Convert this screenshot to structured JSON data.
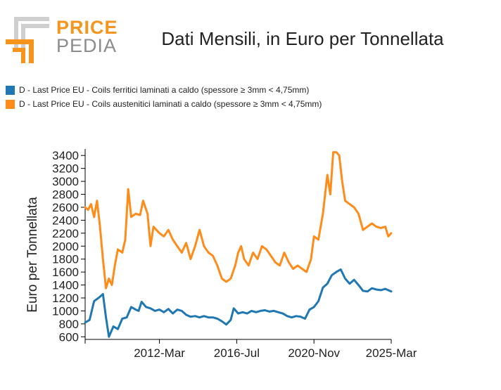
{
  "logo": {
    "top_text": "PRICE",
    "bottom_text": "PEDIA"
  },
  "colors": {
    "series1": "#1f77b4",
    "series2": "#ff8c1a",
    "logo_orange": "#f7941d",
    "logo_gray": "#8c8c8c"
  },
  "chart_data": {
    "type": "line",
    "title": "Dati Mensili, in Euro per Tonnellata",
    "ylabel": "Euro per Tonnellata",
    "xlabel": "",
    "ylim": [
      560,
      3500
    ],
    "yticks": [
      600,
      800,
      1000,
      1200,
      1400,
      1600,
      1800,
      2000,
      2200,
      2400,
      2600,
      2800,
      3000,
      3200,
      3400
    ],
    "xlim": [
      "2008-01",
      "2025-03"
    ],
    "xticks": [
      {
        "label": "2012-Mar",
        "date": "2012-03"
      },
      {
        "label": "2016-Jul",
        "date": "2016-07"
      },
      {
        "label": "2020-Nov",
        "date": "2020-11"
      },
      {
        "label": "2025-Mar",
        "date": "2025-03"
      }
    ],
    "grid": false,
    "legend_position": "top-left",
    "series": [
      {
        "name": "D - Last Price EU - Coils ferritici laminati a caldo (spessore ≥ 3mm < 4,75mm)",
        "color": "#1f77b4",
        "points": [
          [
            "2008-01",
            820
          ],
          [
            "2008-04",
            860
          ],
          [
            "2008-07",
            1150
          ],
          [
            "2008-10",
            1200
          ],
          [
            "2009-01",
            1260
          ],
          [
            "2009-03",
            900
          ],
          [
            "2009-05",
            600
          ],
          [
            "2009-08",
            760
          ],
          [
            "2009-11",
            720
          ],
          [
            "2010-02",
            880
          ],
          [
            "2010-05",
            900
          ],
          [
            "2010-08",
            1060
          ],
          [
            "2010-11",
            1020
          ],
          [
            "2011-01",
            1000
          ],
          [
            "2011-03",
            1140
          ],
          [
            "2011-06",
            1060
          ],
          [
            "2011-09",
            1040
          ],
          [
            "2011-12",
            1000
          ],
          [
            "2012-03",
            1020
          ],
          [
            "2012-06",
            980
          ],
          [
            "2012-09",
            1030
          ],
          [
            "2012-12",
            960
          ],
          [
            "2013-03",
            1020
          ],
          [
            "2013-06",
            1000
          ],
          [
            "2013-09",
            940
          ],
          [
            "2013-12",
            910
          ],
          [
            "2014-03",
            920
          ],
          [
            "2014-06",
            900
          ],
          [
            "2014-09",
            920
          ],
          [
            "2014-12",
            900
          ],
          [
            "2015-03",
            900
          ],
          [
            "2015-06",
            880
          ],
          [
            "2015-09",
            840
          ],
          [
            "2015-12",
            790
          ],
          [
            "2016-03",
            860
          ],
          [
            "2016-05",
            1040
          ],
          [
            "2016-08",
            960
          ],
          [
            "2016-11",
            980
          ],
          [
            "2017-02",
            960
          ],
          [
            "2017-05",
            1000
          ],
          [
            "2017-08",
            980
          ],
          [
            "2017-11",
            1000
          ],
          [
            "2018-02",
            1010
          ],
          [
            "2018-05",
            990
          ],
          [
            "2018-08",
            1000
          ],
          [
            "2018-11",
            980
          ],
          [
            "2019-02",
            960
          ],
          [
            "2019-05",
            920
          ],
          [
            "2019-08",
            900
          ],
          [
            "2019-11",
            920
          ],
          [
            "2020-02",
            910
          ],
          [
            "2020-05",
            880
          ],
          [
            "2020-08",
            1020
          ],
          [
            "2020-11",
            1060
          ],
          [
            "2021-02",
            1150
          ],
          [
            "2021-05",
            1360
          ],
          [
            "2021-08",
            1420
          ],
          [
            "2021-11",
            1550
          ],
          [
            "2022-02",
            1600
          ],
          [
            "2022-05",
            1640
          ],
          [
            "2022-08",
            1500
          ],
          [
            "2022-11",
            1420
          ],
          [
            "2023-02",
            1480
          ],
          [
            "2023-05",
            1400
          ],
          [
            "2023-08",
            1310
          ],
          [
            "2023-11",
            1300
          ],
          [
            "2024-02",
            1350
          ],
          [
            "2024-05",
            1330
          ],
          [
            "2024-08",
            1320
          ],
          [
            "2024-11",
            1340
          ],
          [
            "2025-03",
            1300
          ]
        ]
      },
      {
        "name": "D - Last Price EU - Coils austenitici laminati a caldo (spessore ≥ 3mm <  4,75mm)",
        "color": "#ff8c1a",
        "points": [
          [
            "2008-01",
            2600
          ],
          [
            "2008-03",
            2560
          ],
          [
            "2008-05",
            2650
          ],
          [
            "2008-07",
            2450
          ],
          [
            "2008-09",
            2700
          ],
          [
            "2008-11",
            2300
          ],
          [
            "2009-01",
            1800
          ],
          [
            "2009-03",
            1350
          ],
          [
            "2009-05",
            1500
          ],
          [
            "2009-07",
            1400
          ],
          [
            "2009-09",
            1700
          ],
          [
            "2009-11",
            1950
          ],
          [
            "2010-02",
            1900
          ],
          [
            "2010-04",
            2100
          ],
          [
            "2010-06",
            2880
          ],
          [
            "2010-08",
            2450
          ],
          [
            "2010-11",
            2500
          ],
          [
            "2011-02",
            2480
          ],
          [
            "2011-04",
            2700
          ],
          [
            "2011-07",
            2500
          ],
          [
            "2011-09",
            2000
          ],
          [
            "2011-11",
            2300
          ],
          [
            "2012-03",
            2200
          ],
          [
            "2012-06",
            2150
          ],
          [
            "2012-09",
            2250
          ],
          [
            "2012-12",
            2100
          ],
          [
            "2013-03",
            2000
          ],
          [
            "2013-06",
            1900
          ],
          [
            "2013-09",
            2050
          ],
          [
            "2013-12",
            1800
          ],
          [
            "2014-03",
            2000
          ],
          [
            "2014-06",
            2250
          ],
          [
            "2014-09",
            2000
          ],
          [
            "2014-12",
            1900
          ],
          [
            "2015-03",
            1850
          ],
          [
            "2015-06",
            1700
          ],
          [
            "2015-09",
            1500
          ],
          [
            "2015-12",
            1450
          ],
          [
            "2016-03",
            1500
          ],
          [
            "2016-06",
            1700
          ],
          [
            "2016-08",
            1900
          ],
          [
            "2016-10",
            2000
          ],
          [
            "2016-12",
            1800
          ],
          [
            "2017-03",
            1700
          ],
          [
            "2017-06",
            1900
          ],
          [
            "2017-09",
            1800
          ],
          [
            "2017-12",
            2000
          ],
          [
            "2018-03",
            1950
          ],
          [
            "2018-06",
            1850
          ],
          [
            "2018-09",
            1750
          ],
          [
            "2018-12",
            1700
          ],
          [
            "2019-03",
            1900
          ],
          [
            "2019-06",
            1750
          ],
          [
            "2019-09",
            1650
          ],
          [
            "2019-12",
            1700
          ],
          [
            "2020-03",
            1650
          ],
          [
            "2020-06",
            1600
          ],
          [
            "2020-09",
            1800
          ],
          [
            "2020-11",
            2150
          ],
          [
            "2021-02",
            2100
          ],
          [
            "2021-05",
            2500
          ],
          [
            "2021-08",
            3100
          ],
          [
            "2021-10",
            2800
          ],
          [
            "2021-12",
            3450
          ],
          [
            "2022-02",
            3450
          ],
          [
            "2022-04",
            3400
          ],
          [
            "2022-06",
            3000
          ],
          [
            "2022-08",
            2700
          ],
          [
            "2022-11",
            2650
          ],
          [
            "2023-02",
            2600
          ],
          [
            "2023-05",
            2500
          ],
          [
            "2023-08",
            2250
          ],
          [
            "2023-11",
            2300
          ],
          [
            "2024-02",
            2350
          ],
          [
            "2024-05",
            2300
          ],
          [
            "2024-08",
            2280
          ],
          [
            "2024-11",
            2300
          ],
          [
            "2025-01",
            2150
          ],
          [
            "2025-03",
            2200
          ]
        ]
      }
    ]
  }
}
